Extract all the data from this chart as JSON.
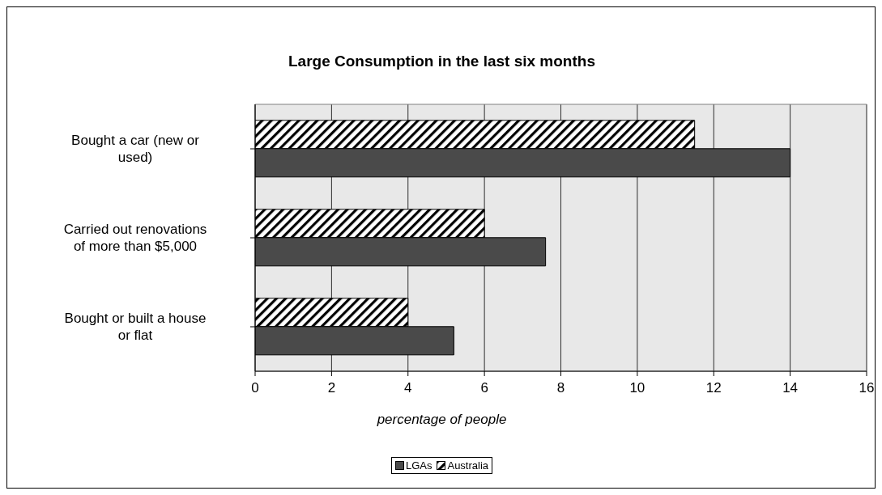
{
  "chart_data": {
    "type": "bar",
    "orientation": "horizontal",
    "title": "Large Consumption in the last six months",
    "xlabel": "percentage of people",
    "categories": [
      "Bought a car (new or used)",
      "Carried out renovations of more than $5,000",
      "Bought or built a house or flat"
    ],
    "series": [
      {
        "name": "LGAs",
        "color": "#4a4a4a",
        "values": [
          14,
          7.6,
          5.2
        ]
      },
      {
        "name": "Australia",
        "color": "#000000",
        "values": [
          11.5,
          6,
          4
        ]
      }
    ],
    "xlim": [
      0,
      16
    ],
    "xticks": [
      0,
      2,
      4,
      6,
      8,
      10,
      12,
      14,
      16
    ],
    "grid": "x",
    "legend": "bottom"
  }
}
